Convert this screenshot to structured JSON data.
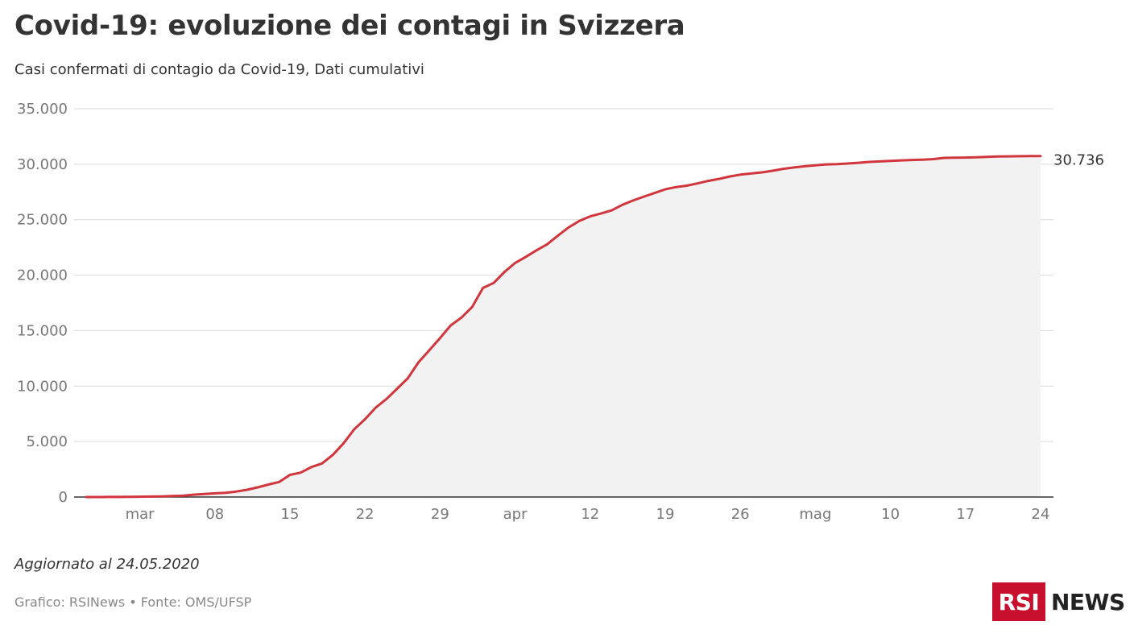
{
  "title": "Covid-19: evoluzione dei contagi in Svizzera",
  "subtitle": "Casi confermati di contagio da Covid-19, Dati cumulativi",
  "note": "Aggiornato al 24.05.2020",
  "source": "Grafico: RSINews • Fonte: OMS/UFSP",
  "logo": {
    "box": "RSI",
    "text": "NEWS"
  },
  "colors": {
    "line": "#d0363c",
    "area": "#f2f2f2",
    "grid": "#d9d9d9",
    "axis": "#333333",
    "brand": "#c8102e"
  },
  "chart_data": {
    "type": "area",
    "end_label": "30.736",
    "ylim": [
      0,
      35000
    ],
    "y_ticks": [
      {
        "value": 0,
        "label": "0"
      },
      {
        "value": 5000,
        "label": "5.000"
      },
      {
        "value": 10000,
        "label": "10.000"
      },
      {
        "value": 15000,
        "label": "15.000"
      },
      {
        "value": 20000,
        "label": "20.000"
      },
      {
        "value": 25000,
        "label": "25.000"
      },
      {
        "value": 30000,
        "label": "30.000"
      },
      {
        "value": 35000,
        "label": "35.000"
      }
    ],
    "x_range": [
      "2020-02-25",
      "2020-05-24"
    ],
    "x_ticks": [
      {
        "date": "2020-03-01",
        "label": "mar"
      },
      {
        "date": "2020-03-08",
        "label": "08"
      },
      {
        "date": "2020-03-15",
        "label": "15"
      },
      {
        "date": "2020-03-22",
        "label": "22"
      },
      {
        "date": "2020-03-29",
        "label": "29"
      },
      {
        "date": "2020-04-05",
        "label": "apr"
      },
      {
        "date": "2020-04-12",
        "label": "12"
      },
      {
        "date": "2020-04-19",
        "label": "19"
      },
      {
        "date": "2020-04-26",
        "label": "26"
      },
      {
        "date": "2020-05-03",
        "label": "mag"
      },
      {
        "date": "2020-05-10",
        "label": "10"
      },
      {
        "date": "2020-05-17",
        "label": "17"
      },
      {
        "date": "2020-05-24",
        "label": "24"
      }
    ],
    "series": [
      {
        "points": [
          [
            "2020-02-25",
            1
          ],
          [
            "2020-02-26",
            2
          ],
          [
            "2020-02-27",
            8
          ],
          [
            "2020-02-28",
            10
          ],
          [
            "2020-02-29",
            18
          ],
          [
            "2020-03-01",
            27
          ],
          [
            "2020-03-02",
            42
          ],
          [
            "2020-03-03",
            56
          ],
          [
            "2020-03-04",
            90
          ],
          [
            "2020-03-05",
            114
          ],
          [
            "2020-03-06",
            214
          ],
          [
            "2020-03-07",
            268
          ],
          [
            "2020-03-08",
            337
          ],
          [
            "2020-03-09",
            374
          ],
          [
            "2020-03-10",
            491
          ],
          [
            "2020-03-11",
            652
          ],
          [
            "2020-03-12",
            868
          ],
          [
            "2020-03-13",
            1125
          ],
          [
            "2020-03-14",
            1359
          ],
          [
            "2020-03-15",
            2000
          ],
          [
            "2020-03-16",
            2200
          ],
          [
            "2020-03-17",
            2700
          ],
          [
            "2020-03-18",
            3028
          ],
          [
            "2020-03-19",
            3800
          ],
          [
            "2020-03-20",
            4840
          ],
          [
            "2020-03-21",
            6113
          ],
          [
            "2020-03-22",
            7014
          ],
          [
            "2020-03-23",
            8060
          ],
          [
            "2020-03-24",
            8836
          ],
          [
            "2020-03-25",
            9765
          ],
          [
            "2020-03-26",
            10714
          ],
          [
            "2020-03-27",
            12161
          ],
          [
            "2020-03-28",
            13229
          ],
          [
            "2020-03-29",
            14336
          ],
          [
            "2020-03-30",
            15475
          ],
          [
            "2020-03-31",
            16176
          ],
          [
            "2020-04-01",
            17139
          ],
          [
            "2020-04-02",
            18844
          ],
          [
            "2020-04-03",
            19303
          ],
          [
            "2020-04-04",
            20278
          ],
          [
            "2020-04-05",
            21100
          ],
          [
            "2020-04-06",
            21652
          ],
          [
            "2020-04-07",
            22242
          ],
          [
            "2020-04-08",
            22789
          ],
          [
            "2020-04-09",
            23574
          ],
          [
            "2020-04-10",
            24308
          ],
          [
            "2020-04-11",
            24900
          ],
          [
            "2020-04-12",
            25300
          ],
          [
            "2020-04-13",
            25550
          ],
          [
            "2020-04-14",
            25834
          ],
          [
            "2020-04-15",
            26336
          ],
          [
            "2020-04-16",
            26732
          ],
          [
            "2020-04-17",
            27078
          ],
          [
            "2020-04-18",
            27404
          ],
          [
            "2020-04-19",
            27740
          ],
          [
            "2020-04-20",
            27944
          ],
          [
            "2020-04-21",
            28063
          ],
          [
            "2020-04-22",
            28268
          ],
          [
            "2020-04-23",
            28496
          ],
          [
            "2020-04-24",
            28677
          ],
          [
            "2020-04-25",
            28894
          ],
          [
            "2020-04-26",
            29061
          ],
          [
            "2020-04-27",
            29164
          ],
          [
            "2020-04-28",
            29264
          ],
          [
            "2020-04-29",
            29407
          ],
          [
            "2020-04-30",
            29586
          ],
          [
            "2020-05-01",
            29705
          ],
          [
            "2020-05-02",
            29817
          ],
          [
            "2020-05-03",
            29905
          ],
          [
            "2020-05-04",
            29981
          ],
          [
            "2020-05-05",
            30009
          ],
          [
            "2020-05-06",
            30060
          ],
          [
            "2020-05-07",
            30126
          ],
          [
            "2020-05-08",
            30207
          ],
          [
            "2020-05-09",
            30251
          ],
          [
            "2020-05-10",
            30305
          ],
          [
            "2020-05-11",
            30344
          ],
          [
            "2020-05-12",
            30380
          ],
          [
            "2020-05-13",
            30413
          ],
          [
            "2020-05-14",
            30463
          ],
          [
            "2020-05-15",
            30572
          ],
          [
            "2020-05-16",
            30587
          ],
          [
            "2020-05-17",
            30597
          ],
          [
            "2020-05-18",
            30618
          ],
          [
            "2020-05-19",
            30658
          ],
          [
            "2020-05-20",
            30694
          ],
          [
            "2020-05-21",
            30707
          ],
          [
            "2020-05-22",
            30725
          ],
          [
            "2020-05-23",
            30736
          ],
          [
            "2020-05-24",
            30736
          ]
        ]
      }
    ]
  }
}
